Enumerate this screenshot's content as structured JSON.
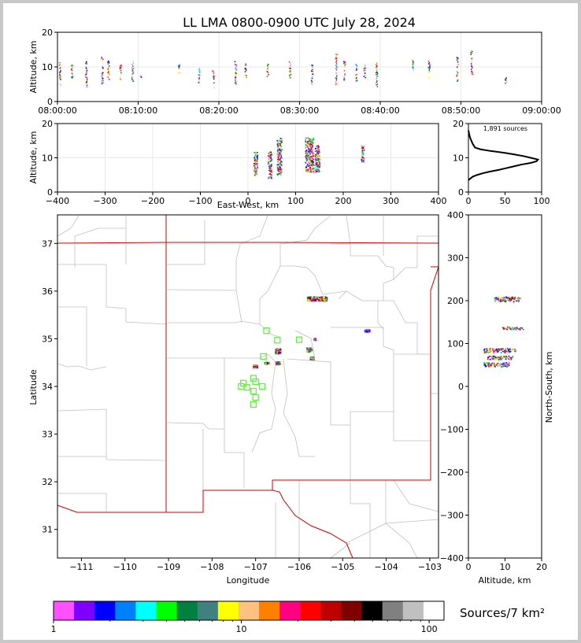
{
  "title": "LL LMA 0800-0900 UTC July 28, 2024",
  "colors": {
    "palette": [
      "#ff4fff",
      "#8000ff",
      "#0000ff",
      "#0080ff",
      "#00ffff",
      "#00ff00",
      "#008040",
      "#408080",
      "#ffff00",
      "#ffc080",
      "#ff8000",
      "#ff0080",
      "#ff0000",
      "#c00000",
      "#800000",
      "#000000",
      "#808080",
      "#c0c0c0",
      "#ffffff"
    ],
    "state_border": "#d00000",
    "county_border": "#c0c0c0",
    "station": "#66ee44"
  },
  "chart_data": [
    {
      "type": "scatter",
      "name": "time-altitude",
      "ylabel": "Altitude, km",
      "xlim": [
        "08:00:00",
        "09:00:00"
      ],
      "xticks": [
        "08:00:00",
        "08:10:00",
        "08:20:00",
        "08:30:00",
        "08:40:00",
        "08:50:00",
        "09:00:00"
      ],
      "ylim": [
        0,
        20
      ],
      "yticks": [
        0,
        10,
        20
      ],
      "grid": true,
      "columns": [
        {
          "t": "08:00:15",
          "zmin": 5,
          "zmax": 12
        },
        {
          "t": "08:01:45",
          "zmin": 7,
          "zmax": 11
        },
        {
          "t": "08:03:30",
          "zmin": 4,
          "zmax": 12
        },
        {
          "t": "08:05:30",
          "zmin": 5,
          "zmax": 13
        },
        {
          "t": "08:06:15",
          "zmin": 6,
          "zmax": 12
        },
        {
          "t": "08:07:45",
          "zmin": 6,
          "zmax": 11
        },
        {
          "t": "08:09:15",
          "zmin": 6,
          "zmax": 12
        },
        {
          "t": "08:10:15",
          "zmin": 7,
          "zmax": 8
        },
        {
          "t": "08:15:00",
          "zmin": 8,
          "zmax": 11
        },
        {
          "t": "08:17:30",
          "zmin": 5,
          "zmax": 10
        },
        {
          "t": "08:19:15",
          "zmin": 4,
          "zmax": 9
        },
        {
          "t": "08:22:00",
          "zmin": 5,
          "zmax": 12
        },
        {
          "t": "08:23:15",
          "zmin": 7,
          "zmax": 11
        },
        {
          "t": "08:26:00",
          "zmin": 7,
          "zmax": 11
        },
        {
          "t": "08:28:45",
          "zmin": 7,
          "zmax": 12
        },
        {
          "t": "08:31:30",
          "zmin": 5,
          "zmax": 11
        },
        {
          "t": "08:34:30",
          "zmin": 5,
          "zmax": 14
        },
        {
          "t": "08:35:30",
          "zmin": 6,
          "zmax": 12
        },
        {
          "t": "08:37:00",
          "zmin": 6,
          "zmax": 11
        },
        {
          "t": "08:38:00",
          "zmin": 7,
          "zmax": 11
        },
        {
          "t": "08:39:30",
          "zmin": 4,
          "zmax": 12
        },
        {
          "t": "08:44:00",
          "zmin": 9,
          "zmax": 12
        },
        {
          "t": "08:46:00",
          "zmin": 7,
          "zmax": 12
        },
        {
          "t": "08:49:30",
          "zmin": 6,
          "zmax": 13
        },
        {
          "t": "08:51:15",
          "zmin": 8,
          "zmax": 15
        },
        {
          "t": "08:55:30",
          "zmin": 5,
          "zmax": 7
        }
      ]
    },
    {
      "type": "scatter",
      "name": "east-west-altitude",
      "xlabel": "East-West, km",
      "ylabel": "Altitude, km",
      "xlim": [
        -400,
        400
      ],
      "xticks": [
        -400,
        -300,
        -200,
        -100,
        0,
        100,
        200,
        300,
        400
      ],
      "ylim": [
        0,
        20
      ],
      "yticks": [
        0,
        10,
        20
      ],
      "grid": true,
      "clusters": [
        {
          "x": 15,
          "w": 8,
          "zmin": 5,
          "zmax": 12
        },
        {
          "x": 45,
          "w": 8,
          "zmin": 4,
          "zmax": 12
        },
        {
          "x": 65,
          "w": 10,
          "zmin": 5,
          "zmax": 16
        },
        {
          "x": 128,
          "w": 18,
          "zmin": 6,
          "zmax": 16
        },
        {
          "x": 145,
          "w": 10,
          "zmin": 6,
          "zmax": 14
        },
        {
          "x": 240,
          "w": 6,
          "zmin": 9,
          "zmax": 14
        }
      ]
    },
    {
      "type": "line",
      "name": "altitude-histogram",
      "annotation": "1,891 sources",
      "xlim": [
        0,
        100
      ],
      "xticks": [
        0,
        50,
        100
      ],
      "ylim": [
        0,
        20
      ],
      "yticks": [
        0,
        10,
        20
      ],
      "x": [
        0,
        3,
        6,
        12,
        20,
        30,
        42,
        52,
        62,
        72,
        85,
        93,
        95,
        85,
        75,
        62,
        48,
        30,
        16,
        9,
        6,
        4,
        2,
        1,
        0
      ],
      "y": [
        3.5,
        4,
        4.5,
        5,
        5.5,
        6,
        6.5,
        7,
        7.5,
        8,
        8.5,
        9,
        9.5,
        10,
        10.5,
        11,
        11.5,
        12,
        12.5,
        13,
        14,
        15,
        16,
        17,
        18
      ]
    },
    {
      "type": "scatter",
      "name": "plan-view-map",
      "xlabel": "Longitude",
      "ylabel": "Latitude",
      "xlim": [
        -111.55,
        -102.8
      ],
      "xticks": [
        -111,
        -110,
        -109,
        -108,
        -107,
        -106,
        -105,
        -104,
        -103
      ],
      "ylim": [
        30.4,
        37.6
      ],
      "yticks": [
        31,
        32,
        33,
        34,
        35,
        36,
        37
      ],
      "stations": [
        {
          "lon": -106.75,
          "lat": 35.17
        },
        {
          "lon": -106.5,
          "lat": 34.97
        },
        {
          "lon": -106.0,
          "lat": 34.98
        },
        {
          "lon": -106.82,
          "lat": 34.63
        },
        {
          "lon": -107.28,
          "lat": 34.07
        },
        {
          "lon": -107.0,
          "lat": 34.1
        },
        {
          "lon": -107.05,
          "lat": 34.17
        },
        {
          "lon": -107.33,
          "lat": 34.0
        },
        {
          "lon": -107.2,
          "lat": 33.98
        },
        {
          "lon": -107.05,
          "lat": 33.9
        },
        {
          "lon": -106.85,
          "lat": 34.0
        },
        {
          "lon": -107.0,
          "lat": 33.77
        },
        {
          "lon": -107.05,
          "lat": 33.62
        }
      ],
      "clusters": [
        {
          "lon": -105.6,
          "lat": 35.85,
          "w": 0.45,
          "h": 0.08
        },
        {
          "lon": -106.5,
          "lat": 34.75,
          "w": 0.12,
          "h": 0.1
        },
        {
          "lon": -106.5,
          "lat": 34.5,
          "w": 0.1,
          "h": 0.06
        },
        {
          "lon": -106.75,
          "lat": 34.5,
          "w": 0.1,
          "h": 0.05
        },
        {
          "lon": -107.02,
          "lat": 34.43,
          "w": 0.1,
          "h": 0.06
        },
        {
          "lon": -105.78,
          "lat": 34.78,
          "w": 0.12,
          "h": 0.08
        },
        {
          "lon": -105.72,
          "lat": 34.6,
          "w": 0.1,
          "h": 0.06
        },
        {
          "lon": -105.65,
          "lat": 35.0,
          "w": 0.05,
          "h": 0.04
        },
        {
          "lon": -104.45,
          "lat": 35.18,
          "w": 0.12,
          "h": 0.05
        }
      ]
    },
    {
      "type": "scatter",
      "name": "altitude-north-south",
      "xlabel": "Altitude, km",
      "ylabel": "North-South, km",
      "xlim": [
        0,
        20
      ],
      "xticks": [
        0,
        10,
        20
      ],
      "ylim": [
        -400,
        400
      ],
      "yticks": [
        -400,
        -300,
        -200,
        -100,
        0,
        100,
        200,
        300,
        400
      ],
      "clusters": [
        {
          "zmin": 7,
          "zmax": 14,
          "ns": 204,
          "h": 12
        },
        {
          "zmin": 9,
          "zmax": 15,
          "ns": 137,
          "h": 6
        },
        {
          "zmin": 4,
          "zmax": 13,
          "ns": 85,
          "h": 10
        },
        {
          "zmin": 5,
          "zmax": 12,
          "ns": 68,
          "h": 8
        },
        {
          "zmin": 4,
          "zmax": 11,
          "ns": 52,
          "h": 10
        }
      ]
    },
    {
      "type": "heatmap",
      "name": "colorbar",
      "label": "Sources/7 km²",
      "scale": "log",
      "range": [
        1,
        120
      ],
      "ticks": [
        "1",
        "10",
        "100"
      ]
    }
  ]
}
